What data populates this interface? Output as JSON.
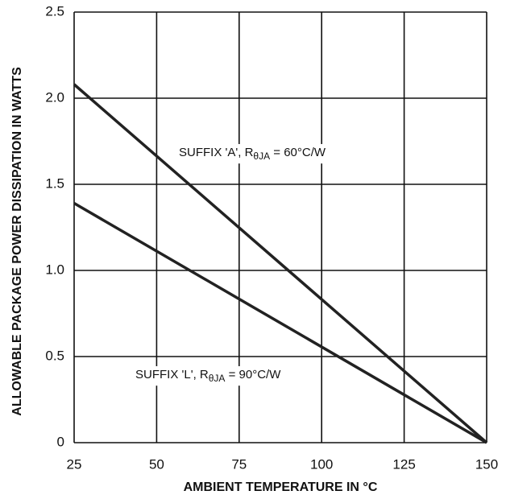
{
  "chart_data": {
    "type": "line",
    "xlabel": "AMBIENT TEMPERATURE IN °C",
    "ylabel": "ALLOWABLE PACKAGE POWER DISSIPATION IN WATTS",
    "x": [
      25,
      150
    ],
    "series": [
      {
        "color": "#222222",
        "values": [
          2.08,
          0
        ]
      },
      {
        "color": "#222222",
        "values": [
          1.39,
          0
        ]
      }
    ],
    "annotations": [
      {
        "text": "SUFFIX 'A', R",
        "sub": "θJA",
        "rest": " = 60°C/W"
      },
      {
        "text": "SUFFIX 'L', R",
        "sub": "θJA",
        "rest": " = 90°C/W"
      }
    ],
    "xlim": [
      25,
      150
    ],
    "ylim": [
      0,
      2.5
    ],
    "xticks": [
      25,
      50,
      75,
      100,
      125,
      150
    ],
    "yticks": [
      0,
      0.5,
      {
        "value": 1,
        "label": "1.0"
      },
      1.5,
      {
        "value": 2,
        "label": "2.0"
      },
      2.5
    ],
    "grid": true
  }
}
